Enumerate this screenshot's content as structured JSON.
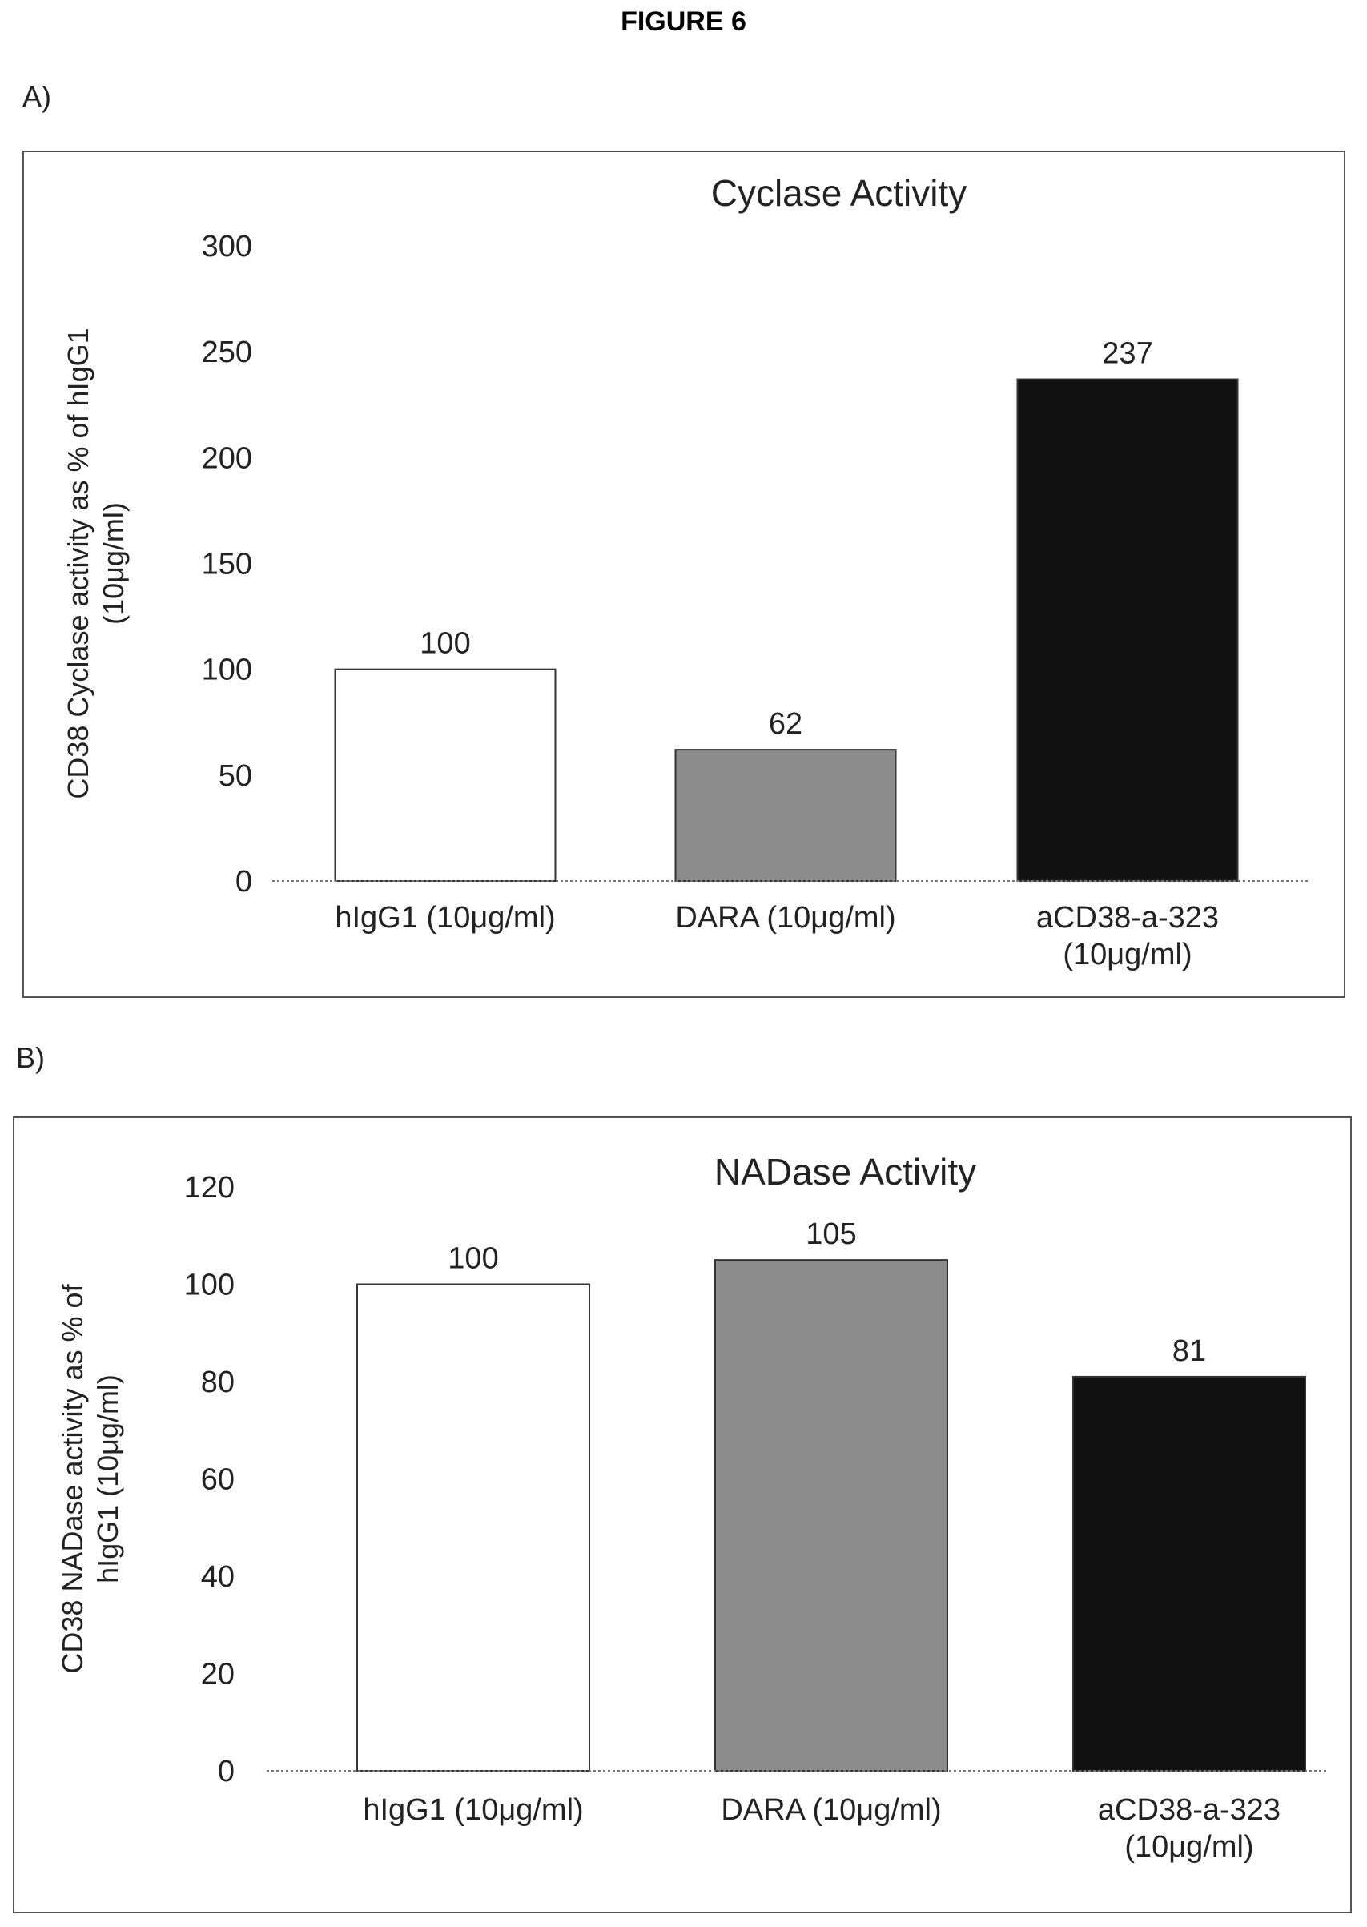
{
  "figure_title": "FIGURE 6",
  "panels": [
    {
      "label": "A)"
    },
    {
      "label": "B)"
    }
  ],
  "chart_data": [
    {
      "type": "bar",
      "title": "Cyclase Activity",
      "ylabel_lines": [
        "CD38 Cyclase activity as % of hIgG1",
        "(10μg/ml)"
      ],
      "xlabel": "",
      "categories": [
        [
          "hIgG1 (10μg/ml)"
        ],
        [
          "DARA (10μg/ml)"
        ],
        [
          "aCD38-a-323",
          "(10μg/ml)"
        ]
      ],
      "values": [
        100,
        62,
        237
      ],
      "data_labels": [
        "100",
        "62",
        "237"
      ],
      "colors": [
        "#ffffff",
        "#8c8c8c",
        "#111111"
      ],
      "ylim": [
        0,
        300
      ],
      "yticks": [
        0,
        50,
        100,
        150,
        200,
        250,
        300
      ],
      "grid": false,
      "legend": "none"
    },
    {
      "type": "bar",
      "title": "NADase Activity",
      "ylabel_lines": [
        "CD38 NADase activity as % of",
        "hIgG1 (10μg/ml)"
      ],
      "xlabel": "",
      "categories": [
        [
          "hIgG1 (10μg/ml)"
        ],
        [
          "DARA (10μg/ml)"
        ],
        [
          "aCD38-a-323",
          "(10μg/ml)"
        ]
      ],
      "values": [
        100,
        105,
        81
      ],
      "data_labels": [
        "100",
        "105",
        "81"
      ],
      "colors": [
        "#ffffff",
        "#8c8c8c",
        "#111111"
      ],
      "ylim": [
        0,
        120
      ],
      "yticks": [
        0,
        20,
        40,
        60,
        80,
        100,
        120
      ],
      "grid": false,
      "legend": "none"
    }
  ]
}
